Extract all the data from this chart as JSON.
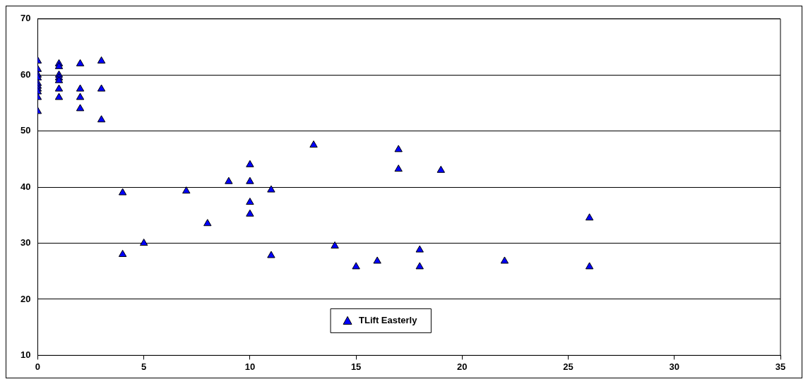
{
  "chart_data": {
    "type": "scatter",
    "marker": "triangle",
    "grid": "y",
    "legend": "bottom",
    "xlim": [
      0,
      35
    ],
    "xticks": [
      0,
      5,
      10,
      15,
      20,
      25,
      30,
      35
    ],
    "ylim": [
      10,
      70
    ],
    "yticks": [
      10,
      20,
      30,
      40,
      50,
      60,
      70
    ],
    "series": [
      {
        "name": "TLift Easterly",
        "color": "#0000ff",
        "x": [
          0,
          0,
          0,
          0,
          0,
          0,
          0,
          0,
          0,
          0,
          1,
          1,
          1,
          1,
          1,
          1,
          1,
          2,
          2,
          2,
          2,
          3,
          3,
          3,
          4,
          4,
          5,
          7,
          8,
          9,
          10,
          10,
          10,
          10,
          11,
          11,
          13,
          14,
          15,
          16,
          17,
          17,
          18,
          18,
          19,
          22,
          26,
          26
        ],
        "values": [
          62.5,
          61,
          60,
          59.5,
          58.5,
          58,
          57.5,
          57,
          56,
          53.5,
          62,
          61.5,
          60,
          59.5,
          59,
          57.5,
          56,
          62,
          57.5,
          56,
          54,
          62.5,
          57.5,
          52,
          39,
          28,
          30,
          39.3,
          33.5,
          41,
          44,
          41,
          37.3,
          35.2,
          39.5,
          27.8,
          47.5,
          29.5,
          25.8,
          26.8,
          46.7,
          43.2,
          28.8,
          25.8,
          43,
          26.8,
          34.5,
          25.8
        ]
      }
    ]
  }
}
